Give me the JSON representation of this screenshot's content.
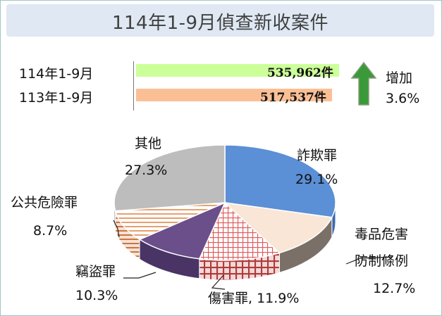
{
  "title": "114年1-9月偵查新收案件",
  "comparison": {
    "rows": [
      {
        "year": "114年1-9月",
        "value_text": "535,962件",
        "value": 535962,
        "color": "#ccff99"
      },
      {
        "year": "113年1-9月",
        "value_text": "517,537件",
        "value": 517537,
        "color": "#fbbf96"
      }
    ],
    "change_label": "增加",
    "change_pct": "3.6%",
    "arrow_color": "#3a9a3a"
  },
  "chart_data": {
    "type": "pie",
    "title": "114年1-9月偵查新收案件",
    "slices": [
      {
        "label": "詐欺罪",
        "value": 29.1,
        "value_text": "29.1%",
        "color": "#5b8fd6"
      },
      {
        "label_line1": "毒品危害",
        "label_line2": "防制條例",
        "value": 12.7,
        "value_text": "12.7%",
        "color": "#f9e6d6"
      },
      {
        "label": "傷害罪, 11.9%",
        "value": 11.9,
        "color": "#e05a5a"
      },
      {
        "label": "竊盜罪",
        "value": 10.3,
        "value_text": "10.3%",
        "color": "#6a4f8a"
      },
      {
        "label": "公共危險罪",
        "value": 8.7,
        "value_text": "8.7%",
        "color": "#e2874a"
      },
      {
        "label": "其他",
        "value": 27.3,
        "value_text": "27.3%",
        "color": "#bdbdbd"
      }
    ]
  }
}
